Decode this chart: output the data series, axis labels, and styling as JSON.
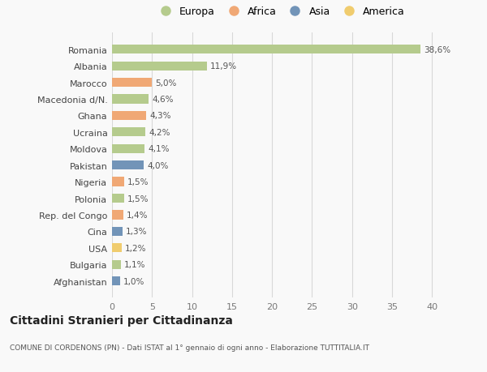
{
  "countries": [
    "Romania",
    "Albania",
    "Marocco",
    "Macedonia d/N.",
    "Ghana",
    "Ucraina",
    "Moldova",
    "Pakistan",
    "Nigeria",
    "Polonia",
    "Rep. del Congo",
    "Cina",
    "USA",
    "Bulgaria",
    "Afghanistan"
  ],
  "values": [
    38.6,
    11.9,
    5.0,
    4.6,
    4.3,
    4.2,
    4.1,
    4.0,
    1.5,
    1.5,
    1.4,
    1.3,
    1.2,
    1.1,
    1.0
  ],
  "labels": [
    "38,6%",
    "11,9%",
    "5,0%",
    "4,6%",
    "4,3%",
    "4,2%",
    "4,1%",
    "4,0%",
    "1,5%",
    "1,5%",
    "1,4%",
    "1,3%",
    "1,2%",
    "1,1%",
    "1,0%"
  ],
  "continents": [
    "Europa",
    "Europa",
    "Africa",
    "Europa",
    "Africa",
    "Europa",
    "Europa",
    "Asia",
    "Africa",
    "Europa",
    "Africa",
    "Asia",
    "America",
    "Europa",
    "Asia"
  ],
  "colors": {
    "Europa": "#b5cb8d",
    "Africa": "#f0a875",
    "Asia": "#7294b8",
    "America": "#f0cc6e"
  },
  "title": "Cittadini Stranieri per Cittadinanza",
  "subtitle": "COMUNE DI CORDENONS (PN) - Dati ISTAT al 1° gennaio di ogni anno - Elaborazione TUTTITALIA.IT",
  "xlim": [
    0,
    42
  ],
  "xticks": [
    0,
    5,
    10,
    15,
    20,
    25,
    30,
    35,
    40
  ],
  "bg_color": "#f9f9f9",
  "grid_color": "#d8d8d8",
  "bar_height": 0.55
}
